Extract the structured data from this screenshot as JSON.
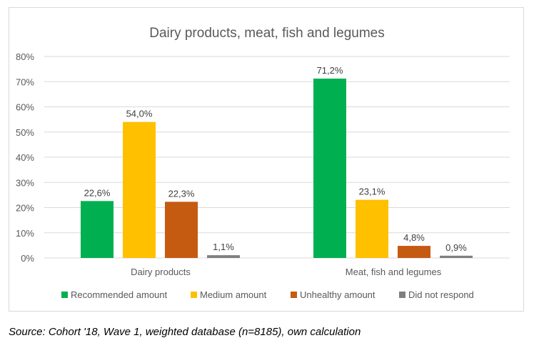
{
  "chart_data": {
    "type": "bar",
    "title": "Dairy products, meat, fish and legumes",
    "categories": [
      "Dairy products",
      "Meat, fish and legumes"
    ],
    "series": [
      {
        "name": "Recommended amount",
        "color": "#00b050",
        "values": [
          22.6,
          71.2
        ],
        "labels": [
          "22,6%",
          "71,2%"
        ]
      },
      {
        "name": "Medium amount",
        "color": "#ffc000",
        "values": [
          54.0,
          23.1
        ],
        "labels": [
          "54,0%",
          "23,1%"
        ]
      },
      {
        "name": "Unhealthy amount",
        "color": "#c55a11",
        "values": [
          22.3,
          4.8
        ],
        "labels": [
          "22,3%",
          "4,8%"
        ]
      },
      {
        "name": "Did not respond",
        "color": "#7f7f7f",
        "values": [
          1.1,
          0.9
        ],
        "labels": [
          "1,1%",
          "0,9%"
        ]
      }
    ],
    "yticks": [
      "0%",
      "10%",
      "20%",
      "30%",
      "40%",
      "50%",
      "60%",
      "70%",
      "80%"
    ],
    "ylim": [
      0,
      80
    ],
    "grid": true,
    "legend": "bottom"
  },
  "source_note": "Source: Cohort '18, Wave 1, weighted database (n=8185), own calculation"
}
